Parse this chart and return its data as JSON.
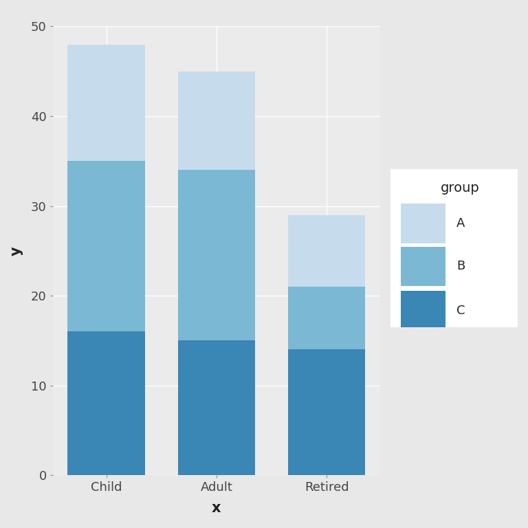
{
  "categories": [
    "Child",
    "Adult",
    "Retired"
  ],
  "groups": [
    "C",
    "B",
    "A"
  ],
  "values": {
    "Child": {
      "C": 16,
      "B": 19,
      "A": 13
    },
    "Adult": {
      "C": 15,
      "B": 19,
      "A": 11
    },
    "Retired": {
      "C": 14,
      "B": 7,
      "A": 8
    }
  },
  "colors": {
    "A": "#C6DCEC",
    "B": "#7BB8D4",
    "C": "#3A86B4"
  },
  "xlabel": "x",
  "ylabel": "y",
  "ylim": [
    0,
    50
  ],
  "yticks": [
    0,
    10,
    20,
    30,
    40,
    50
  ],
  "legend_title": "group",
  "legend_labels": [
    "A",
    "B",
    "C"
  ],
  "fig_bg_color": "#E8E8E8",
  "panel_bg": "#EBEBEB",
  "grid_color": "#FFFFFF",
  "bar_width": 0.7
}
